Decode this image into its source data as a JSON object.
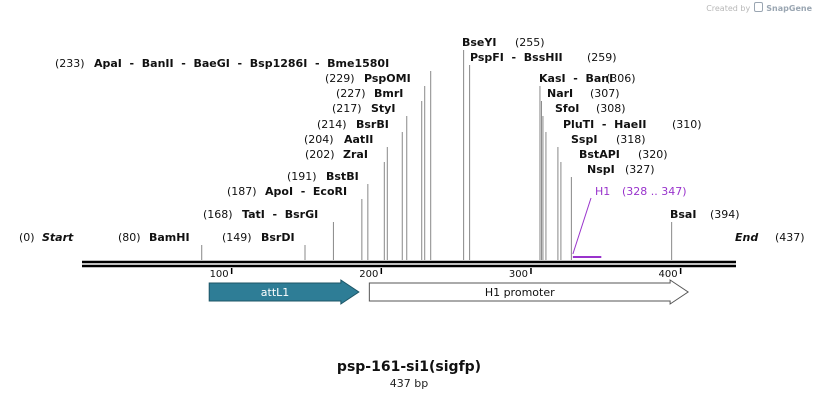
{
  "branding": {
    "prefix": "Created by",
    "name": "SnapGene"
  },
  "map": {
    "name": "psp-161-si1(sigfp)",
    "size_label": "437 bp",
    "length_bp": 437
  },
  "ends": {
    "start_label": "Start",
    "start_pos": "(0)",
    "end_label": "End",
    "end_pos": "(437)"
  },
  "sites": [
    {
      "pos": 80,
      "pos_label": "(80)",
      "name": "BamHI"
    },
    {
      "pos": 149,
      "pos_label": "(149)",
      "name": "BsrDI"
    },
    {
      "pos": 168,
      "pos_label": "(168)",
      "name": "TatI  -  BsrGI"
    },
    {
      "pos": 187,
      "pos_label": "(187)",
      "name": "ApoI  -  EcoRI"
    },
    {
      "pos": 191,
      "pos_label": "(191)",
      "name": "BstBI"
    },
    {
      "pos": 202,
      "pos_label": "(202)",
      "name": "ZraI"
    },
    {
      "pos": 204,
      "pos_label": "(204)",
      "name": "AatII"
    },
    {
      "pos": 214,
      "pos_label": "(214)",
      "name": "BsrBI"
    },
    {
      "pos": 217,
      "pos_label": "(217)",
      "name": "StyI"
    },
    {
      "pos": 227,
      "pos_label": "(227)",
      "name": "BmrI"
    },
    {
      "pos": 229,
      "pos_label": "(229)",
      "name": "PspOMI"
    },
    {
      "pos": 233,
      "pos_label": "(233)",
      "name": "ApaI  -  BanII  -  BaeGI  -  Bsp1286I  -  Bme1580I"
    },
    {
      "pos": 255,
      "pos_label": "(255)",
      "name": "BseYI"
    },
    {
      "pos": 259,
      "pos_label": "(259)",
      "name": "PspFI  -  BssHII"
    },
    {
      "pos": 306,
      "pos_label": "(306)",
      "name": "KasI  -  BanI"
    },
    {
      "pos": 307,
      "pos_label": "(307)",
      "name": "NarI"
    },
    {
      "pos": 308,
      "pos_label": "(308)",
      "name": "SfoI"
    },
    {
      "pos": 310,
      "pos_label": "(310)",
      "name": "PluTI  -  HaeII"
    },
    {
      "pos": 318,
      "pos_label": "(318)",
      "name": "SspI"
    },
    {
      "pos": 320,
      "pos_label": "(320)",
      "name": "BstAPI"
    },
    {
      "pos": 327,
      "pos_label": "(327)",
      "name": "NspI"
    },
    {
      "pos": 394,
      "pos_label": "(394)",
      "name": "BsaI"
    }
  ],
  "primer": {
    "name": "H1",
    "range_label": "(328 .. 347)",
    "start": 328,
    "end": 347
  },
  "ruler": {
    "ticks": [
      100,
      200,
      300,
      400
    ],
    "tick_labels": [
      "100",
      "200",
      "300",
      "400"
    ]
  },
  "features": [
    {
      "name": "attL1",
      "start": 85,
      "end": 185,
      "fill": "#2e7d96",
      "text_color": "#ffffff",
      "stroke": "#1d5566"
    },
    {
      "name": "H1 promoter",
      "start": 192,
      "end": 405,
      "fill": "#ffffff",
      "text_color": "#111111",
      "stroke": "#555555"
    }
  ],
  "colors": {
    "primer": "#9933cc",
    "backbone": "#000000",
    "leader": "#888888"
  }
}
